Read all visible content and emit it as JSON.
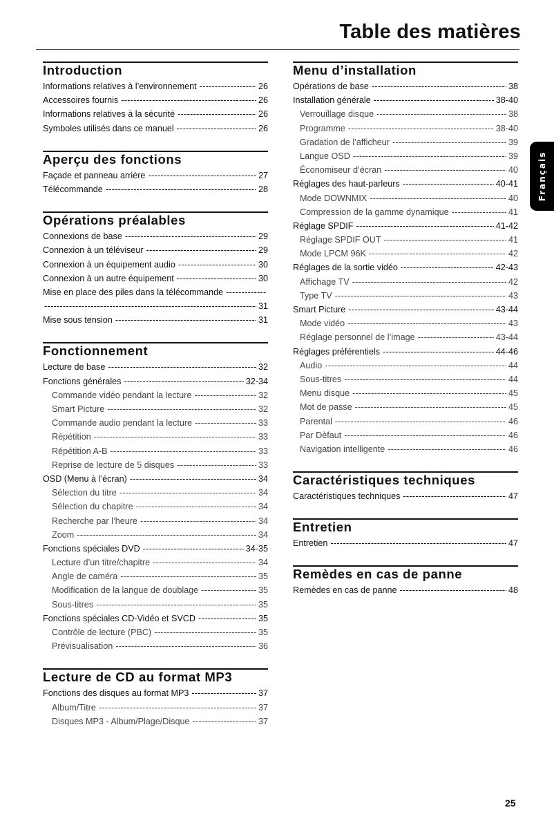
{
  "title": "Table des matières",
  "language_tab": "Français",
  "page_number": "25",
  "left_sections": [
    {
      "heading": "Introduction",
      "entries": [
        {
          "text": "Informations relatives à l’environnement",
          "page": "26",
          "level": 1
        },
        {
          "text": "Accessoires fournis",
          "page": "26",
          "level": 1
        },
        {
          "text": "Informations relatives à la sécurité",
          "page": "26",
          "level": 1
        },
        {
          "text": "Symboles utilisés dans ce manuel",
          "page": "26",
          "level": 1
        }
      ]
    },
    {
      "heading": "Aperçu des fonctions",
      "entries": [
        {
          "text": "Façade et panneau arrière",
          "page": "27",
          "level": 1
        },
        {
          "text": "Télécommande",
          "page": "28",
          "level": 1
        }
      ]
    },
    {
      "heading": "Opérations préalables",
      "entries": [
        {
          "text": "Connexions de base",
          "page": "29",
          "level": 1
        },
        {
          "text": "Connexion à un téléviseur",
          "page": "29",
          "level": 1
        },
        {
          "text": "Connexion à un équipement audio",
          "page": "30",
          "level": 1
        },
        {
          "text": "Connexion à un autre équipement",
          "page": "30",
          "level": 1
        },
        {
          "text": "Mise en place des piles dans la télécommande",
          "page": "31",
          "level": 1,
          "wrap": true
        },
        {
          "text": "Mise sous tension",
          "page": "31",
          "level": 1
        }
      ]
    },
    {
      "heading": "Fonctionnement",
      "entries": [
        {
          "text": "Lecture de base",
          "page": "32",
          "level": 1
        },
        {
          "text": "Fonctions générales",
          "page": "32-34",
          "level": 1
        },
        {
          "text": "Commande vidéo pendant la lecture",
          "page": "32",
          "level": 2
        },
        {
          "text": "Smart Picture",
          "page": "32",
          "level": 2
        },
        {
          "text": "Commande audio pendant la lecture",
          "page": "33",
          "level": 2
        },
        {
          "text": "Répétition",
          "page": "33",
          "level": 2
        },
        {
          "text": "Répétition A-B",
          "page": "33",
          "level": 2
        },
        {
          "text": "Reprise de lecture de 5 disques",
          "page": "33",
          "level": 2
        },
        {
          "text": "OSD (Menu à l’écran)",
          "page": "34",
          "level": 1
        },
        {
          "text": "Sélection du titre",
          "page": "34",
          "level": 2
        },
        {
          "text": "Sélection du chapitre",
          "page": "34",
          "level": 2
        },
        {
          "text": "Recherche par l’heure",
          "page": "34",
          "level": 2
        },
        {
          "text": "Zoom",
          "page": "34",
          "level": 2
        },
        {
          "text": "Fonctions spéciales DVD",
          "page": "34-35",
          "level": 1
        },
        {
          "text": "Lecture d’un titre/chapitre",
          "page": "34",
          "level": 2
        },
        {
          "text": "Angle de caméra",
          "page": "35",
          "level": 2
        },
        {
          "text": "Modification de la langue de doublage",
          "page": "35",
          "level": 2
        },
        {
          "text": "Sous-titres",
          "page": "35",
          "level": 2
        },
        {
          "text": "Fonctions spéciales CD-Vidéo et SVCD",
          "page": "35",
          "level": 1
        },
        {
          "text": "Contrôle de lecture (PBC)",
          "page": "35",
          "level": 2
        },
        {
          "text": "Prévisualisation",
          "page": "36",
          "level": 2
        }
      ]
    },
    {
      "heading": "Lecture de CD au format MP3",
      "entries": [
        {
          "text": "Fonctions des disques au format MP3",
          "page": "37",
          "level": 1
        },
        {
          "text": "Album/Titre",
          "page": "37",
          "level": 2
        },
        {
          "text": "Disques MP3 - Album/Plage/Disque",
          "page": "37",
          "level": 2
        }
      ]
    }
  ],
  "right_sections": [
    {
      "heading": "Menu d’installation",
      "entries": [
        {
          "text": "Opérations de base",
          "page": "38",
          "level": 1
        },
        {
          "text": "Installation générale",
          "page": "38-40",
          "level": 1
        },
        {
          "text": "Verrouillage disque",
          "page": "38",
          "level": 2
        },
        {
          "text": "Programme",
          "page": "38-40",
          "level": 2
        },
        {
          "text": "Gradation de l’afficheur",
          "page": "39",
          "level": 2
        },
        {
          "text": "Langue OSD",
          "page": "39",
          "level": 2
        },
        {
          "text": "Économiseur d’écran",
          "page": "40",
          "level": 2
        },
        {
          "text": "Réglages des haut-parleurs",
          "page": "40-41",
          "level": 1
        },
        {
          "text": "Mode DOWNMIX",
          "page": "40",
          "level": 2
        },
        {
          "text": "Compression de la gamme dynamique",
          "page": "41",
          "level": 2
        },
        {
          "text": "Réglage SPDIF",
          "page": "41-42",
          "level": 1
        },
        {
          "text": "Réglage SPDIF OUT",
          "page": "41",
          "level": 2
        },
        {
          "text": "Mode LPCM 96K",
          "page": "42",
          "level": 2
        },
        {
          "text": "Réglages de la sortie vidéo",
          "page": "42-43",
          "level": 1
        },
        {
          "text": "Affichage TV",
          "page": "42",
          "level": 2
        },
        {
          "text": "Type TV",
          "page": "43",
          "level": 2
        },
        {
          "text": "Smart Picture",
          "page": "43-44",
          "level": 1
        },
        {
          "text": "Mode vidéo",
          "page": "43",
          "level": 2
        },
        {
          "text": "Réglage personnel de l’image",
          "page": "43-44",
          "level": 2
        },
        {
          "text": "Réglages préférentiels",
          "page": "44-46",
          "level": 1
        },
        {
          "text": "Audio",
          "page": "44",
          "level": 2
        },
        {
          "text": "Sous-titres",
          "page": "44",
          "level": 2
        },
        {
          "text": "Menu disque",
          "page": "45",
          "level": 2
        },
        {
          "text": "Mot de passe",
          "page": "45",
          "level": 2
        },
        {
          "text": "Parental",
          "page": "46",
          "level": 2
        },
        {
          "text": "Par Dèfaut",
          "page": "46",
          "level": 2
        },
        {
          "text": "Navigation intelligente",
          "page": "46",
          "level": 2
        }
      ]
    },
    {
      "heading": "Caractéristiques techniques",
      "entries": [
        {
          "text": "Caractéristiques techniques",
          "page": "47",
          "level": 1
        }
      ]
    },
    {
      "heading": "Entretien",
      "entries": [
        {
          "text": "Entretien",
          "page": "47",
          "level": 1
        }
      ]
    },
    {
      "heading": "Remèdes en cas de panne",
      "entries": [
        {
          "text": "Remèdes en cas de panne",
          "page": "48",
          "level": 1
        }
      ]
    }
  ]
}
